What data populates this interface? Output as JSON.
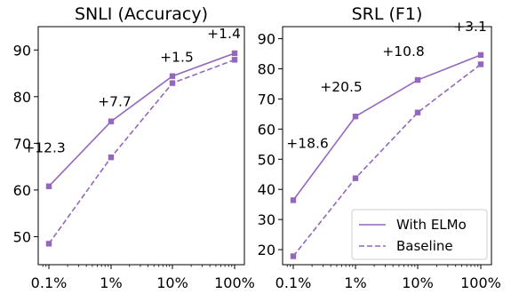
{
  "colors": {
    "series": "#9467bd",
    "axis": "#000000",
    "legend_border": "#cccccc"
  },
  "chart_data": [
    {
      "type": "line",
      "title": "SNLI (Accuracy)",
      "x": [
        "0.1%",
        "1%",
        "10%",
        "100%"
      ],
      "x_scale": "log",
      "ylim": [
        44,
        95
      ],
      "yticks": [
        50,
        60,
        70,
        80,
        90
      ],
      "grid": false,
      "series": [
        {
          "name": "With ELMo",
          "style": "solid",
          "marker": "square",
          "values": [
            60.8,
            74.7,
            84.4,
            89.3
          ]
        },
        {
          "name": "Baseline",
          "style": "dashed",
          "marker": "square",
          "values": [
            48.5,
            67.0,
            82.9,
            87.9
          ]
        }
      ],
      "annotations": [
        {
          "text": "+12.3",
          "x": "0.1%"
        },
        {
          "text": "+7.7",
          "x": "1%"
        },
        {
          "text": "+1.5",
          "x": "10%"
        },
        {
          "text": "+1.4",
          "x": "100%"
        }
      ]
    },
    {
      "type": "line",
      "title": "SRL (F1)",
      "x": [
        "0.1%",
        "1%",
        "10%",
        "100%"
      ],
      "x_scale": "log",
      "ylim": [
        15,
        94
      ],
      "yticks": [
        20,
        30,
        40,
        50,
        60,
        70,
        80,
        90
      ],
      "grid": false,
      "legend_position": "lower-right",
      "series": [
        {
          "name": "With ELMo",
          "style": "solid",
          "marker": "square",
          "values": [
            36.4,
            64.2,
            76.3,
            84.6
          ]
        },
        {
          "name": "Baseline",
          "style": "dashed",
          "marker": "square",
          "values": [
            17.8,
            43.7,
            65.5,
            81.5
          ]
        }
      ],
      "annotations": [
        {
          "text": "+18.6",
          "x": "0.1%"
        },
        {
          "text": "+20.5",
          "x": "1%"
        },
        {
          "text": "+10.8",
          "x": "10%"
        },
        {
          "text": "+3.1",
          "x": "100%"
        }
      ]
    }
  ]
}
